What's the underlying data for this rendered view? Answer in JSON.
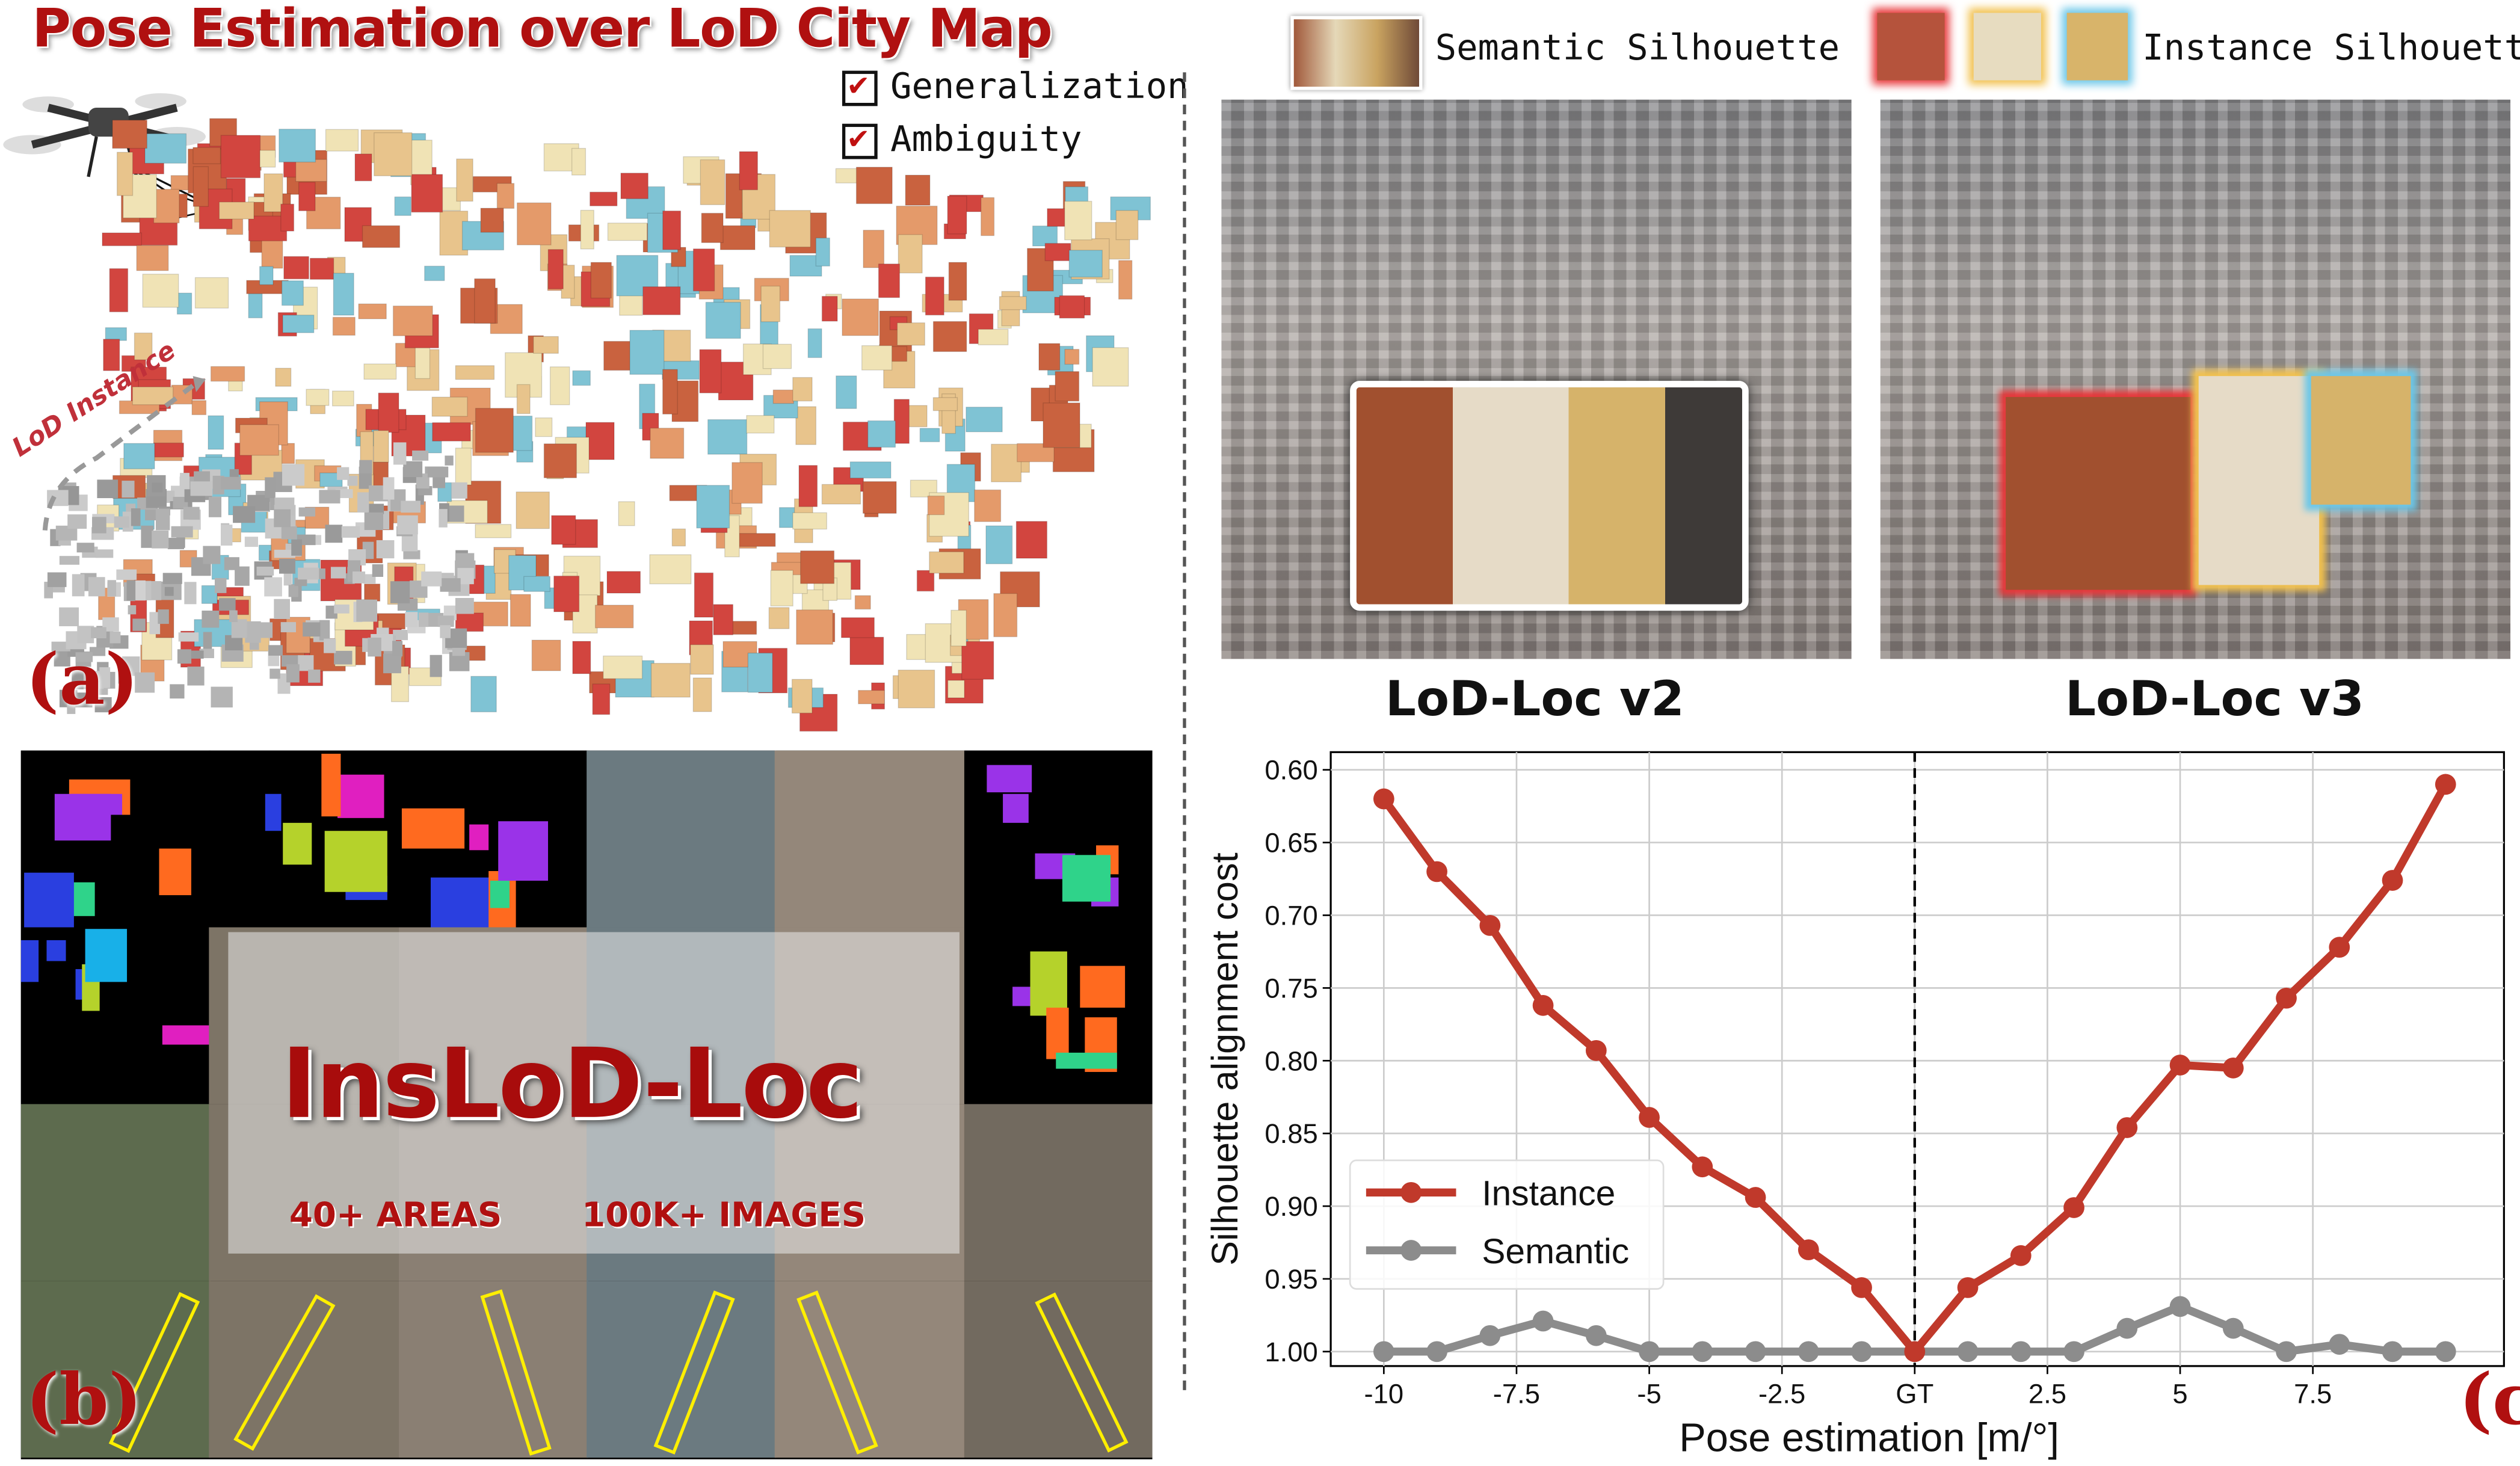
{
  "panel_a": {
    "title": "Pose Estimation over LoD City Map",
    "checklist": [
      {
        "label": "Generalization",
        "checked": true
      },
      {
        "label": "Ambiguity",
        "checked": true
      }
    ],
    "annotation": "LoD Instance",
    "letter": "(a)",
    "colors": {
      "title": "#b01010",
      "building_palette": [
        "#c9623f",
        "#e8c48c",
        "#7fc3d4",
        "#d2453f",
        "#f0e3b5",
        "#e49a6a"
      ]
    }
  },
  "top_right": {
    "semantic_header": "Semantic Silhouette",
    "instance_header": "Instance Silhouette",
    "left_caption": "LoD-Loc v2",
    "right_caption": "LoD-Loc v3",
    "instance_outline_colors": [
      "#e8383b",
      "#f2c14e",
      "#6cc7e8"
    ]
  },
  "panel_b": {
    "title": "InsLoD-Loc",
    "stat_areas": "40+ AREAS",
    "stat_images": "100K+ IMAGES",
    "letter": "(b)"
  },
  "panel_c": {
    "letter": "(c)"
  },
  "chart_data": {
    "type": "line",
    "xlabel": "Pose estimation [m/°]",
    "ylabel": "Silhouette alignment cost",
    "x": [
      -10,
      -9,
      -8,
      -7,
      -6,
      -5,
      -4,
      -3,
      -2,
      -1,
      0,
      1,
      2,
      3,
      4,
      5,
      6,
      7,
      8,
      9,
      10
    ],
    "xticks": [
      -10,
      -7.5,
      -5,
      -2.5,
      0,
      2.5,
      5,
      7.5
    ],
    "xtick_labels": [
      "-10",
      "-7.5",
      "-5",
      "-2.5",
      "GT",
      "2.5",
      "5",
      "7.5"
    ],
    "yticks": [
      "0.60",
      "0.65",
      "0.70",
      "0.75",
      "0.80",
      "0.85",
      "0.90",
      "0.95",
      "1.00"
    ],
    "ylim": [
      0.6,
      1.0
    ],
    "y_inverted": true,
    "xlim": [
      -11,
      11.1
    ],
    "grid": true,
    "vertical_reference_line": {
      "x": 0,
      "style": "dashed",
      "color": "#000000"
    },
    "legend_position": "lower-left",
    "series": [
      {
        "name": "Instance",
        "color": "#c0392b",
        "values": [
          0.62,
          0.67,
          0.707,
          0.762,
          0.793,
          0.839,
          0.873,
          0.894,
          0.93,
          0.956,
          1.0,
          0.956,
          0.934,
          0.901,
          0.846,
          0.803,
          0.805,
          0.757,
          0.722,
          0.676,
          0.61
        ]
      },
      {
        "name": "Semantic",
        "color": "#8c8c8c",
        "values": [
          1.0,
          1.0,
          0.989,
          0.979,
          0.989,
          1.0,
          1.0,
          1.0,
          1.0,
          1.0,
          1.0,
          1.0,
          1.0,
          1.0,
          0.984,
          0.969,
          0.984,
          1.0,
          0.995,
          1.0,
          1.0
        ]
      }
    ]
  }
}
